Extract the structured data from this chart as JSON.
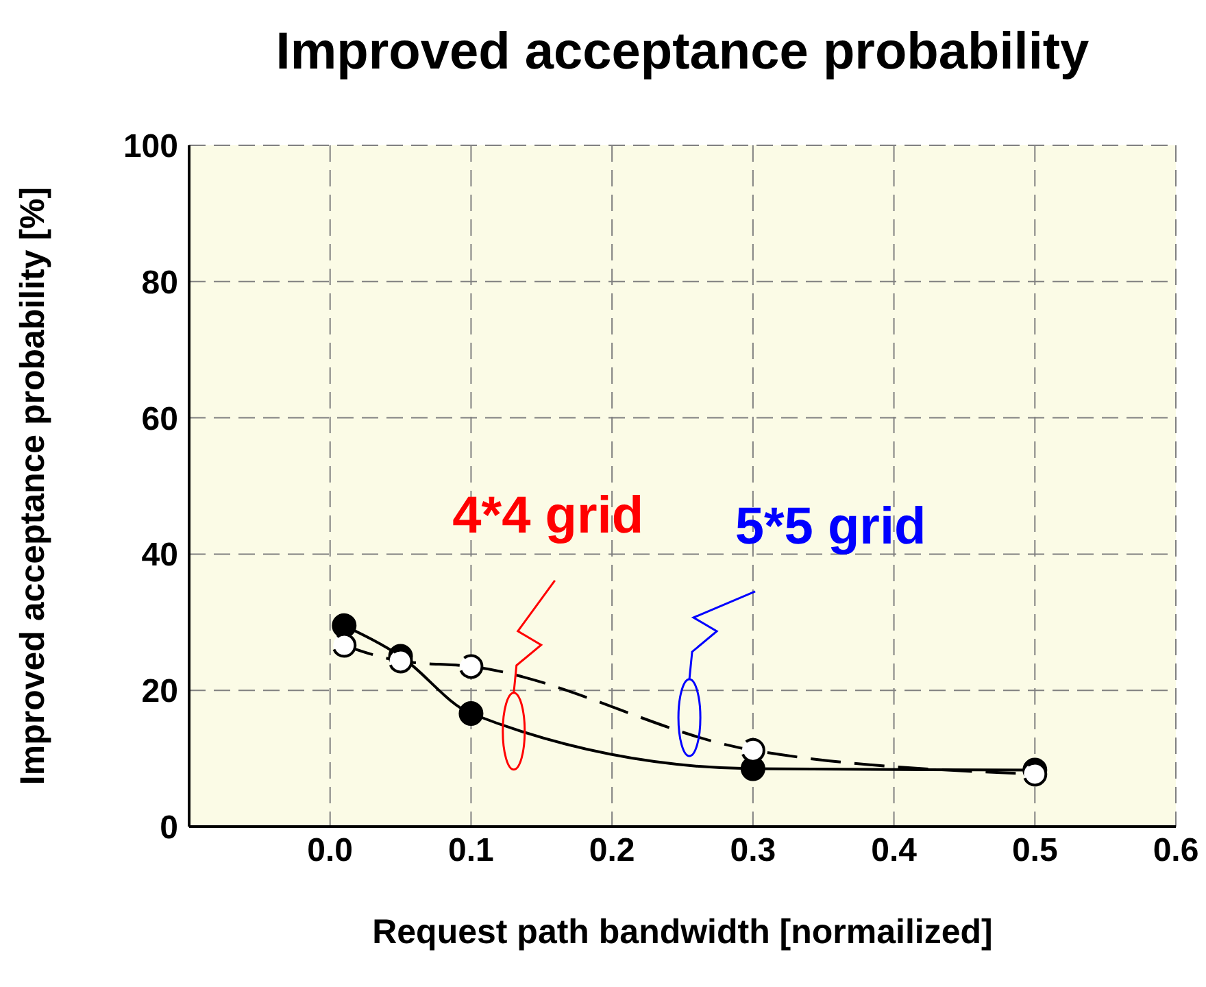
{
  "chart_data": {
    "type": "line",
    "title": "Improved acceptance probability",
    "xlabel": "Request path bandwidth [normailized]",
    "ylabel": "Improved acceptance probability [%]",
    "xlim": [
      -0.1,
      0.6
    ],
    "xticks": [
      {
        "value": 0,
        "label": "0.0"
      },
      {
        "value": 0.1,
        "label": "0.1"
      },
      {
        "value": 0.2,
        "label": "0.2"
      },
      {
        "value": 0.3,
        "label": "0.3"
      },
      {
        "value": 0.4,
        "label": "0.4"
      },
      {
        "value": 0.5,
        "label": "0.5"
      },
      {
        "value": 0.6,
        "label": "0.6"
      }
    ],
    "ylim": [
      0,
      100
    ],
    "yticks": [
      0,
      20,
      40,
      60,
      80,
      100
    ],
    "grid": true,
    "marker": "circle",
    "series": [
      {
        "color": "#000000",
        "line_style": "solid",
        "x": [
          0.01,
          0.05,
          0.1,
          0.3,
          0.5
        ],
        "values": [
          29.5,
          25,
          16.6,
          8.5,
          8.3
        ]
      },
      {
        "color": "#000000",
        "line_style": "dashed",
        "x": [
          0.01,
          0.05,
          0.1,
          0.3,
          0.5
        ],
        "values": [
          26.6,
          24.3,
          23.5,
          11.2,
          7.7
        ]
      }
    ],
    "annotations": [
      "4*4 grid",
      "5*5 grid"
    ]
  }
}
